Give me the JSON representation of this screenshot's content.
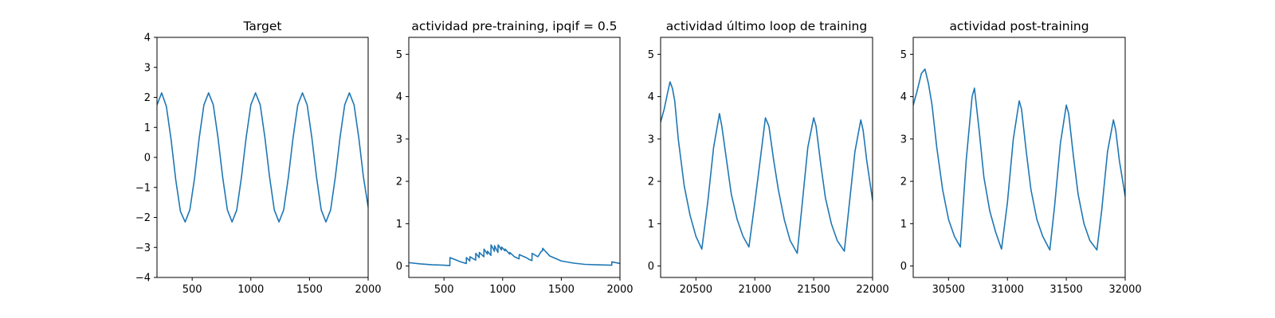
{
  "chart_data": [
    {
      "type": "line",
      "title": "Target",
      "xlabel": "",
      "ylabel": "",
      "xlim": [
        200,
        2000
      ],
      "ylim": [
        -4,
        4
      ],
      "xticks": [
        500,
        1000,
        1500,
        2000
      ],
      "xtick_labels": [
        "500",
        "1000",
        "1500",
        "2000"
      ],
      "yticks": [
        -4,
        -3,
        -2,
        -1,
        0,
        1,
        2,
        3,
        4
      ],
      "ytick_labels": [
        "−4",
        "−3",
        "−2",
        "−1",
        "0",
        "1",
        "2",
        "3",
        "4"
      ],
      "grid": false,
      "color": "#1f77b4",
      "series": [
        {
          "x": [
            200,
            240,
            280,
            320,
            360,
            400,
            440,
            480,
            520,
            560,
            600,
            640,
            680,
            720,
            760,
            800,
            840,
            880,
            920,
            960,
            1000,
            1040,
            1080,
            1120,
            1160,
            1200,
            1240,
            1280,
            1320,
            1360,
            1400,
            1440,
            1480,
            1520,
            1560,
            1600,
            1640,
            1680,
            1720,
            1760,
            1800,
            1840,
            1880,
            1920,
            1960,
            2000
          ],
          "y": [
            1.75,
            2.15,
            1.7,
            0.6,
            -0.75,
            -1.8,
            -2.15,
            -1.75,
            -0.7,
            0.65,
            1.75,
            2.15,
            1.75,
            0.66,
            -0.66,
            -1.75,
            -2.15,
            -1.75,
            -0.66,
            0.66,
            1.75,
            2.15,
            1.75,
            0.66,
            -0.66,
            -1.75,
            -2.15,
            -1.75,
            -0.66,
            0.66,
            1.75,
            2.15,
            1.75,
            0.66,
            -0.66,
            -1.75,
            -2.15,
            -1.75,
            -0.66,
            0.66,
            1.75,
            2.15,
            1.75,
            0.66,
            -0.66,
            -1.65
          ]
        }
      ]
    },
    {
      "type": "line",
      "title": "actividad pre-training, ipqif = 0.5",
      "xlabel": "",
      "ylabel": "",
      "xlim": [
        200,
        2000
      ],
      "ylim": [
        -0.27,
        5.4
      ],
      "xticks": [
        500,
        1000,
        1500,
        2000
      ],
      "xtick_labels": [
        "500",
        "1000",
        "1500",
        "2000"
      ],
      "yticks": [
        0,
        1,
        2,
        3,
        4,
        5
      ],
      "ytick_labels": [
        "0",
        "1",
        "2",
        "3",
        "4",
        "5"
      ],
      "grid": false,
      "color": "#1f77b4",
      "series": [
        {
          "x": [
            200,
            300,
            400,
            500,
            550,
            551,
            640,
            690,
            691,
            720,
            721,
            770,
            771,
            800,
            801,
            840,
            841,
            870,
            871,
            900,
            901,
            930,
            931,
            960,
            961,
            990,
            991,
            1020,
            1021,
            1060,
            1061,
            1100,
            1130,
            1140,
            1141,
            1200,
            1230,
            1250,
            1251,
            1300,
            1330,
            1340,
            1341,
            1400,
            1500,
            1600,
            1700,
            1800,
            1930,
            1931,
            2000
          ],
          "y": [
            0.08,
            0.05,
            0.03,
            0.02,
            0.01,
            0.2,
            0.1,
            0.06,
            0.2,
            0.12,
            0.22,
            0.14,
            0.3,
            0.2,
            0.32,
            0.22,
            0.4,
            0.28,
            0.35,
            0.25,
            0.5,
            0.35,
            0.48,
            0.32,
            0.5,
            0.38,
            0.45,
            0.36,
            0.4,
            0.28,
            0.32,
            0.22,
            0.18,
            0.17,
            0.27,
            0.2,
            0.15,
            0.13,
            0.3,
            0.22,
            0.35,
            0.36,
            0.42,
            0.24,
            0.12,
            0.07,
            0.04,
            0.03,
            0.02,
            0.1,
            0.06
          ]
        }
      ]
    },
    {
      "type": "line",
      "title": "actividad último loop de training",
      "xlabel": "",
      "ylabel": "",
      "xlim": [
        20200,
        22000
      ],
      "ylim": [
        -0.27,
        5.4
      ],
      "xticks": [
        20500,
        21000,
        21500,
        22000
      ],
      "xtick_labels": [
        "20500",
        "21000",
        "21500",
        "22000"
      ],
      "yticks": [
        0,
        1,
        2,
        3,
        4,
        5
      ],
      "ytick_labels": [
        "0",
        "1",
        "2",
        "3",
        "4",
        "5"
      ],
      "grid": false,
      "color": "#1f77b4",
      "series": [
        {
          "x": [
            20200,
            20230,
            20260,
            20280,
            20300,
            20320,
            20350,
            20400,
            20450,
            20500,
            20550,
            20600,
            20650,
            20700,
            20720,
            20760,
            20800,
            20850,
            20900,
            20950,
            21000,
            21050,
            21090,
            21120,
            21160,
            21200,
            21250,
            21300,
            21360,
            21400,
            21450,
            21500,
            21520,
            21560,
            21600,
            21650,
            21700,
            21760,
            21800,
            21850,
            21900,
            21920,
            21950,
            22000
          ],
          "y": [
            3.4,
            3.7,
            4.1,
            4.35,
            4.2,
            3.9,
            3.0,
            1.9,
            1.2,
            0.7,
            0.4,
            1.5,
            2.8,
            3.6,
            3.3,
            2.5,
            1.7,
            1.1,
            0.7,
            0.45,
            1.5,
            2.6,
            3.5,
            3.3,
            2.5,
            1.8,
            1.1,
            0.6,
            0.3,
            1.4,
            2.8,
            3.5,
            3.3,
            2.4,
            1.6,
            1.0,
            0.6,
            0.35,
            1.4,
            2.7,
            3.45,
            3.2,
            2.5,
            1.55
          ]
        }
      ]
    },
    {
      "type": "line",
      "title": "actividad post-training",
      "xlabel": "",
      "ylabel": "",
      "xlim": [
        30200,
        32000
      ],
      "ylim": [
        -0.27,
        5.4
      ],
      "xticks": [
        30500,
        31000,
        31500,
        32000
      ],
      "xtick_labels": [
        "30500",
        "31000",
        "31500",
        "32000"
      ],
      "yticks": [
        0,
        1,
        2,
        3,
        4,
        5
      ],
      "ytick_labels": [
        "0",
        "1",
        "2",
        "3",
        "4",
        "5"
      ],
      "grid": false,
      "color": "#1f77b4",
      "series": [
        {
          "x": [
            30200,
            30230,
            30270,
            30300,
            30330,
            30360,
            30400,
            30450,
            30500,
            30550,
            30600,
            30650,
            30700,
            30720,
            30760,
            30800,
            30850,
            30900,
            30950,
            31000,
            31050,
            31100,
            31120,
            31160,
            31200,
            31250,
            31300,
            31360,
            31400,
            31450,
            31500,
            31520,
            31560,
            31600,
            31650,
            31700,
            31760,
            31800,
            31850,
            31900,
            31920,
            31950,
            32000
          ],
          "y": [
            3.8,
            4.1,
            4.55,
            4.65,
            4.3,
            3.8,
            2.8,
            1.8,
            1.1,
            0.7,
            0.45,
            2.5,
            4.0,
            4.2,
            3.2,
            2.1,
            1.3,
            0.8,
            0.4,
            1.5,
            3.0,
            3.9,
            3.7,
            2.7,
            1.8,
            1.1,
            0.7,
            0.38,
            1.4,
            2.9,
            3.8,
            3.6,
            2.6,
            1.7,
            1.0,
            0.6,
            0.38,
            1.3,
            2.7,
            3.45,
            3.2,
            2.5,
            1.65
          ]
        }
      ]
    }
  ]
}
